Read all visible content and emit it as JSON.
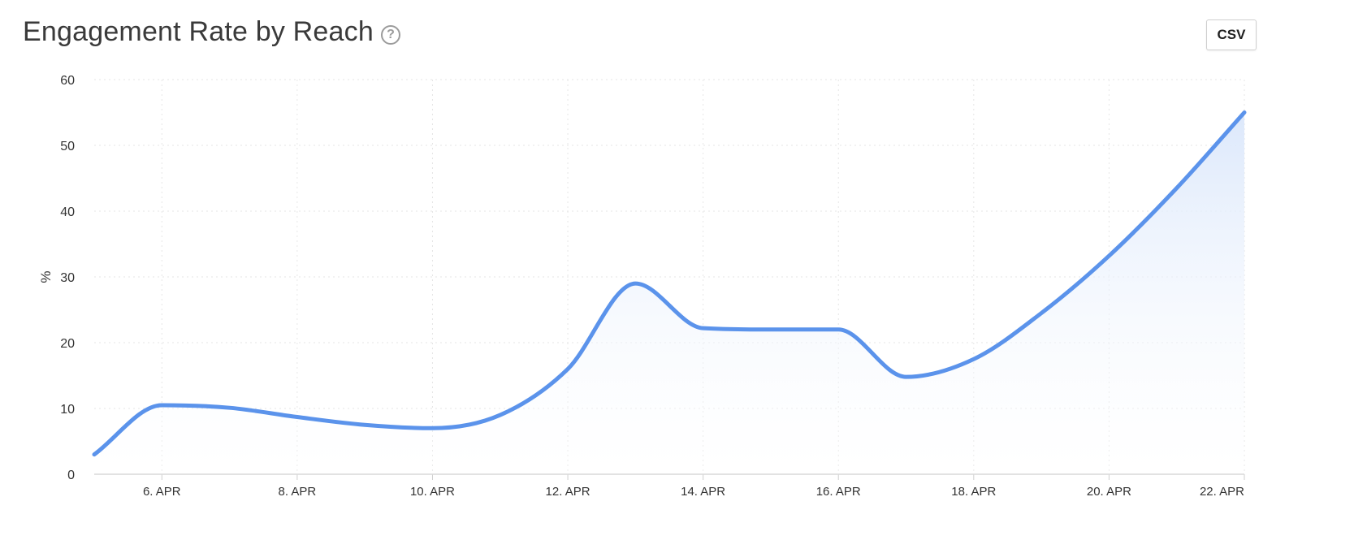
{
  "header": {
    "title": "Engagement Rate by Reach",
    "help_symbol": "?",
    "csv_label": "CSV"
  },
  "icons": {
    "help": "question-circle-icon"
  },
  "colors": {
    "line": "#5b93eb",
    "fill_top": "#dce8fb",
    "fill_bottom": "#ffffff",
    "grid": "#e6e6e6",
    "text": "#333333"
  },
  "chart_data": {
    "type": "area",
    "title": "Engagement Rate by Reach",
    "ylabel": "%",
    "xlabel": "",
    "ylim": [
      0,
      60
    ],
    "yticks": [
      0,
      10,
      20,
      30,
      40,
      50,
      60
    ],
    "x_ticks": [
      "6. APR",
      "8. APR",
      "10. APR",
      "12. APR",
      "14. APR",
      "16. APR",
      "18. APR",
      "20. APR",
      "22. APR"
    ],
    "grid": true,
    "legend": "none",
    "series": [
      {
        "x": [
          "5. APR",
          "6. APR",
          "7. APR",
          "8. APR",
          "9. APR",
          "10. APR",
          "11. APR",
          "12. APR",
          "13. APR",
          "14. APR",
          "15. APR",
          "16. APR",
          "17. APR",
          "18. APR",
          "19. APR",
          "20. APR",
          "21. APR",
          "22. APR"
        ],
        "values": [
          3,
          10.5,
          10.1,
          8.7,
          7.5,
          7.0,
          9.0,
          16.0,
          29.0,
          22.2,
          22.0,
          22.0,
          14.8,
          17.5,
          24.5,
          33.2,
          43.5,
          55.0
        ]
      }
    ]
  }
}
